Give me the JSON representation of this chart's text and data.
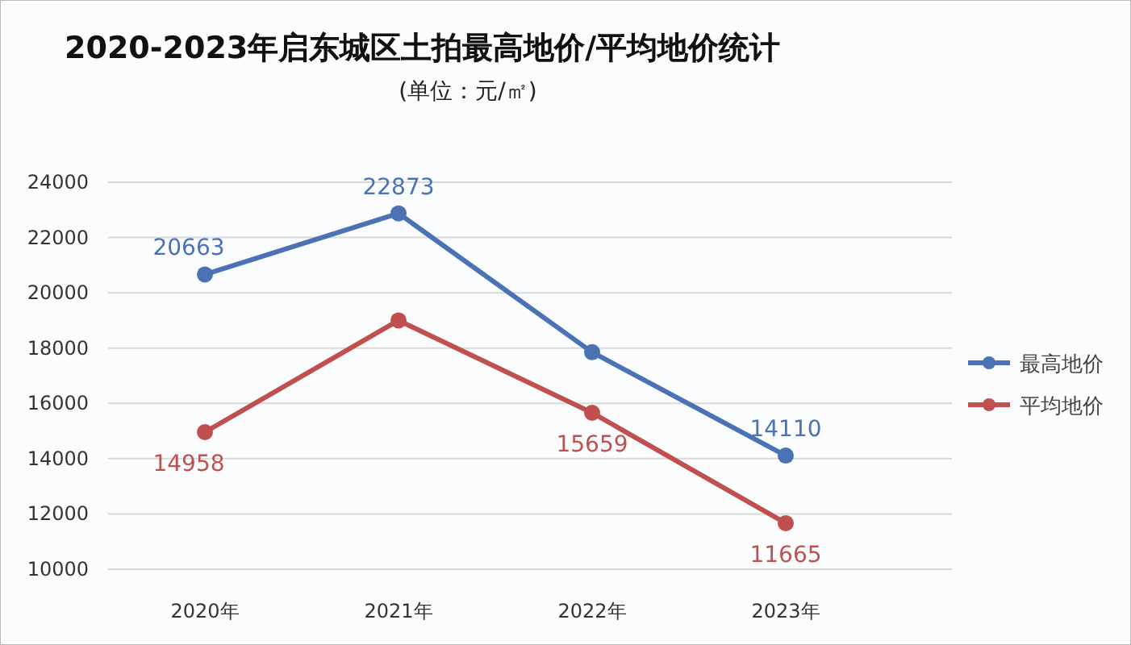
{
  "chart_data": {
    "type": "line",
    "title": "2020-2023年启东城区土拍最高地价/平均地价统计",
    "subtitle": "(单位：元/㎡)",
    "categories": [
      "2020年",
      "2021年",
      "2022年",
      "2023年"
    ],
    "series": [
      {
        "name": "最高地价",
        "color": "#4a72b5",
        "values": [
          20663,
          22873,
          17850,
          14110
        ],
        "value_labels": [
          "20663",
          "22873",
          null,
          "14110"
        ]
      },
      {
        "name": "平均地价",
        "color": "#c0504d",
        "values": [
          14958,
          19000,
          15659,
          11665
        ],
        "value_labels": [
          "14958",
          null,
          "15659",
          "11665"
        ]
      }
    ],
    "ylim": [
      10000,
      24000
    ],
    "yticks": [
      10000,
      12000,
      14000,
      16000,
      18000,
      20000,
      22000,
      24000
    ],
    "grid": "y",
    "legend": "right",
    "marker": "circle",
    "line_style": "solid"
  }
}
